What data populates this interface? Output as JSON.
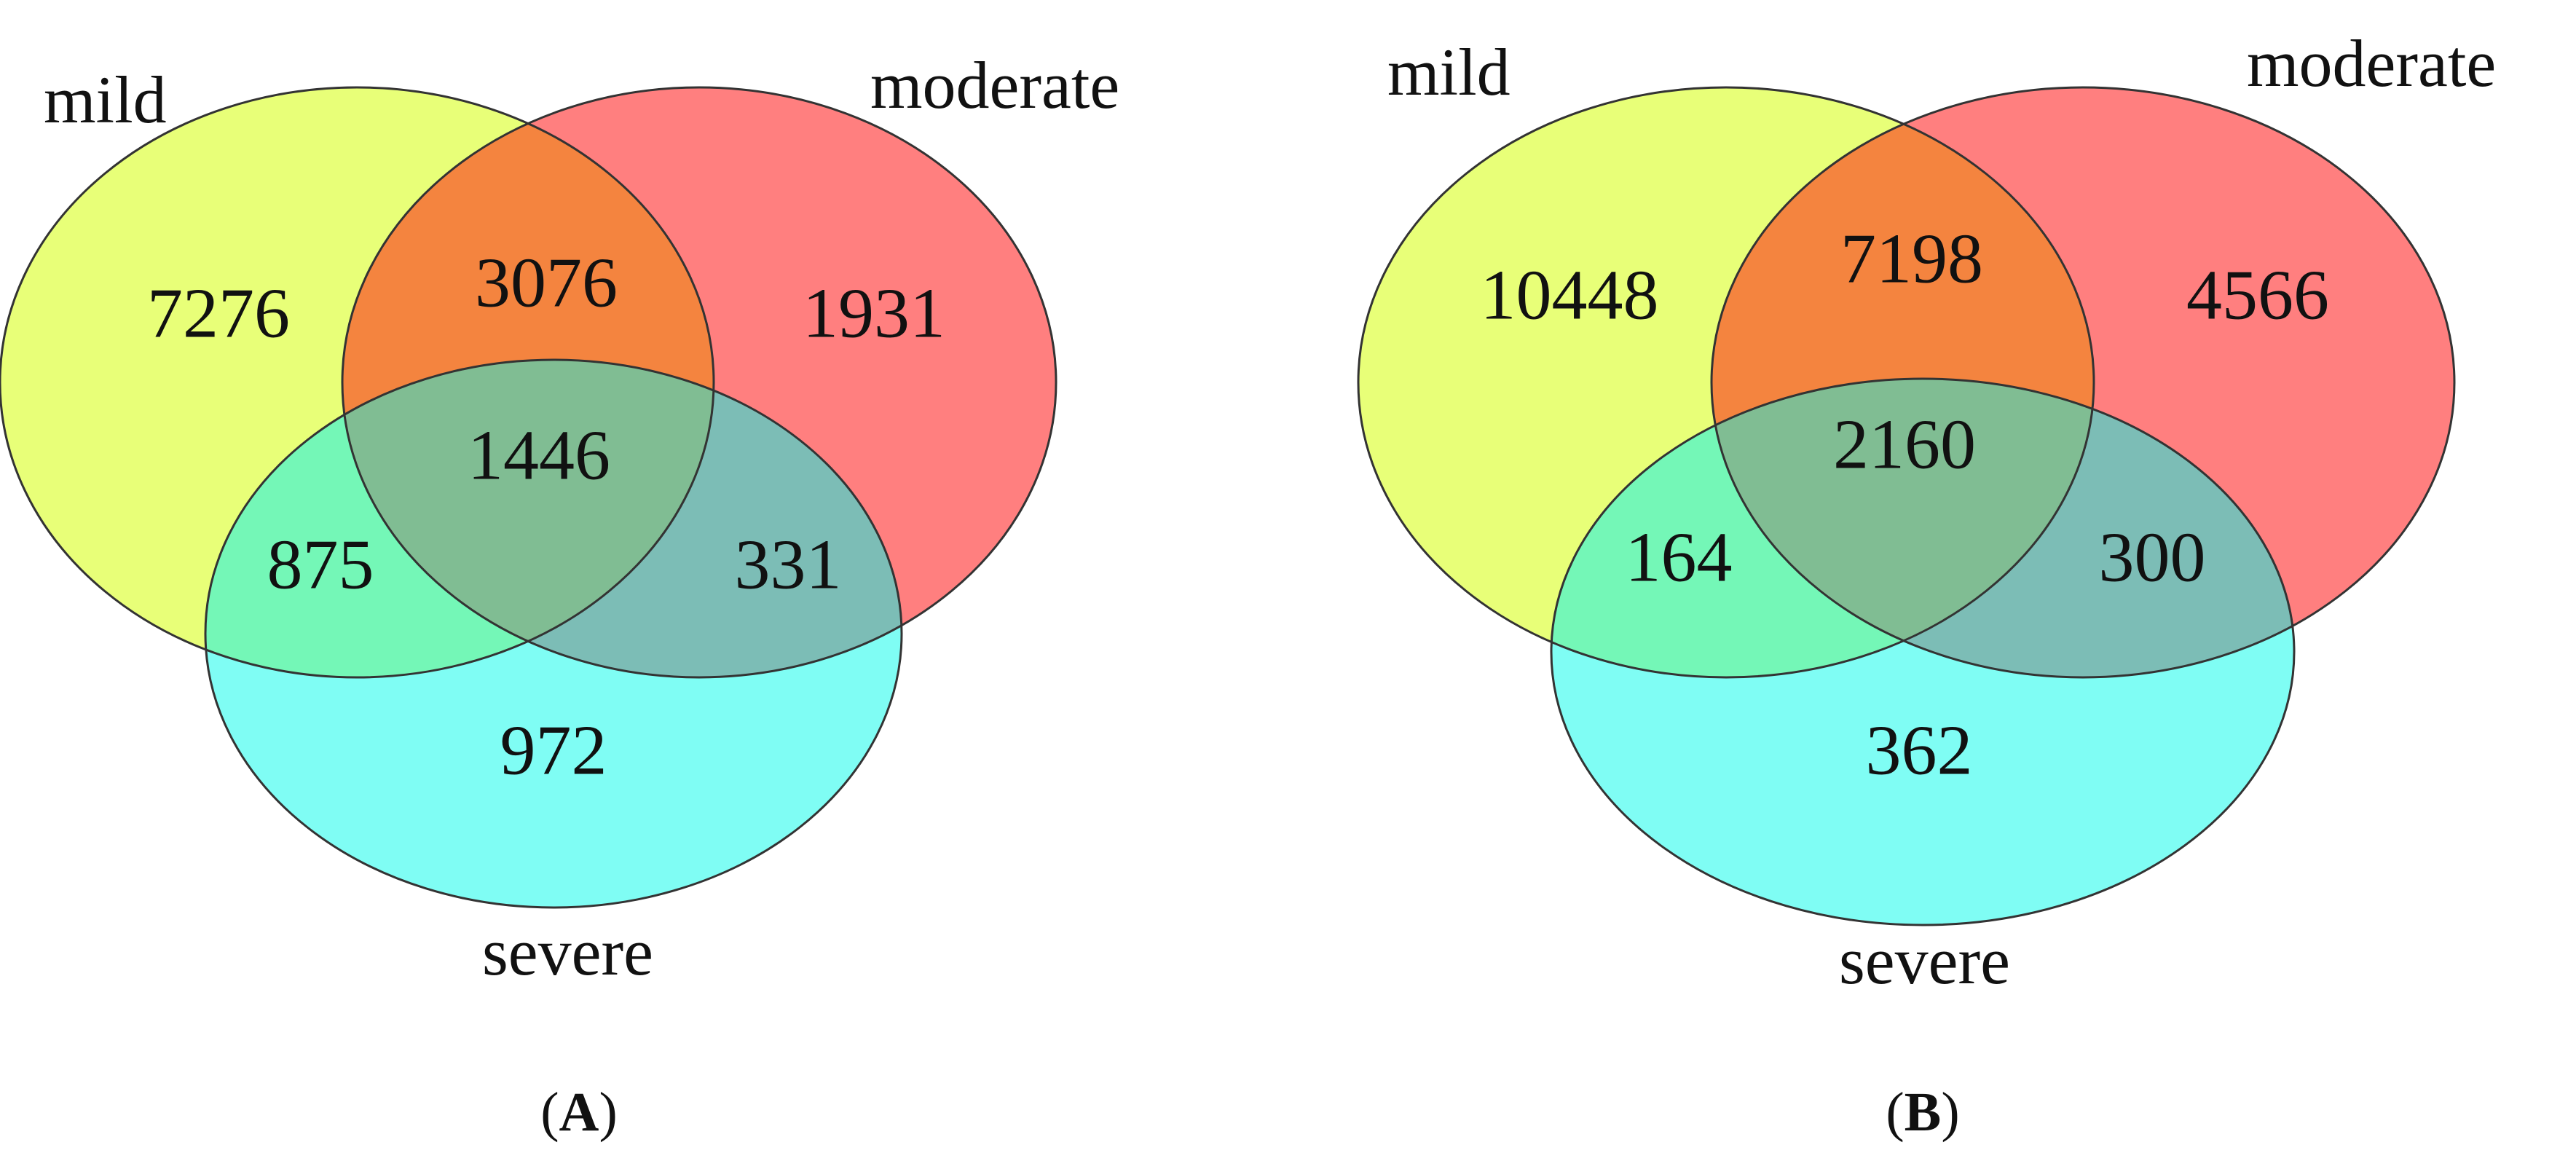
{
  "colors": {
    "mild": "#e8ff78",
    "moderate": "#ff7f7f",
    "severe": "#7ffdf4",
    "mild_moderate": "#f4843f",
    "mild_severe": "#74f7b7",
    "moderate_severe": "#7cbdb6",
    "all_three": "#80bd93"
  },
  "panels": [
    {
      "caption_open": "(",
      "caption_letter": "A",
      "caption_close": ")",
      "labels": {
        "mild": "mild",
        "moderate": "moderate",
        "severe": "severe"
      },
      "counts": {
        "mild_only": "7276",
        "mild_moderate": "3076",
        "moderate_only": "1931",
        "all_three": "1446",
        "mild_severe": "875",
        "moderate_severe": "331",
        "severe_only": "972"
      }
    },
    {
      "caption_open": "(",
      "caption_letter": "B",
      "caption_close": ")",
      "labels": {
        "mild": "mild",
        "moderate": "moderate",
        "severe": "severe"
      },
      "counts": {
        "mild_only": "10448",
        "mild_moderate": "7198",
        "moderate_only": "4566",
        "all_three": "2160",
        "mild_severe": "164",
        "moderate_severe": "300",
        "severe_only": "362"
      }
    }
  ]
}
